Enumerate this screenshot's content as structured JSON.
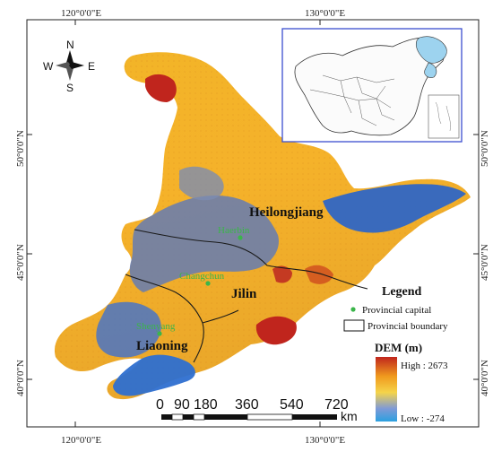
{
  "map": {
    "coordinates": {
      "top_left": "120°0'0\"E",
      "top_right": "130°0'0\"E",
      "bottom_left": "120°0'0\"E",
      "bottom_right": "130°0'0\"E",
      "left_50": "50°0'0\"N",
      "left_45": "45°0'0\"N",
      "left_40": "40°0'0\"N",
      "right_50": "50°0'0\"N",
      "right_45": "45°0'0\"N",
      "right_40": "40°0'0\"N"
    },
    "north_arrow": {
      "n": "N",
      "s": "S",
      "e": "E",
      "w": "W"
    },
    "provinces": {
      "heilongjiang": "Heilongjiang",
      "jilin": "Jilin",
      "liaoning": "Liaoning"
    },
    "cities": {
      "harbin": "Haerbin",
      "changchun": "Changchun",
      "shenyang": "Shenyang"
    },
    "legend": {
      "title": "Legend",
      "capital": "Provincial capital",
      "boundary": "Provincial boundary",
      "dem_title": "DEM (m)",
      "high": "High : 2673",
      "low": "Low : -274"
    },
    "scale": {
      "labels": [
        "0",
        "90",
        "180",
        "360",
        "540",
        "720"
      ],
      "unit": "km"
    },
    "colors": {
      "high": "#c0251d",
      "mid_high": "#f09a1e",
      "mid": "#f5c43a",
      "mid_low": "#6f7fa8",
      "low": "#2b6fc9",
      "capital_dot": "#3bb54a"
    }
  }
}
